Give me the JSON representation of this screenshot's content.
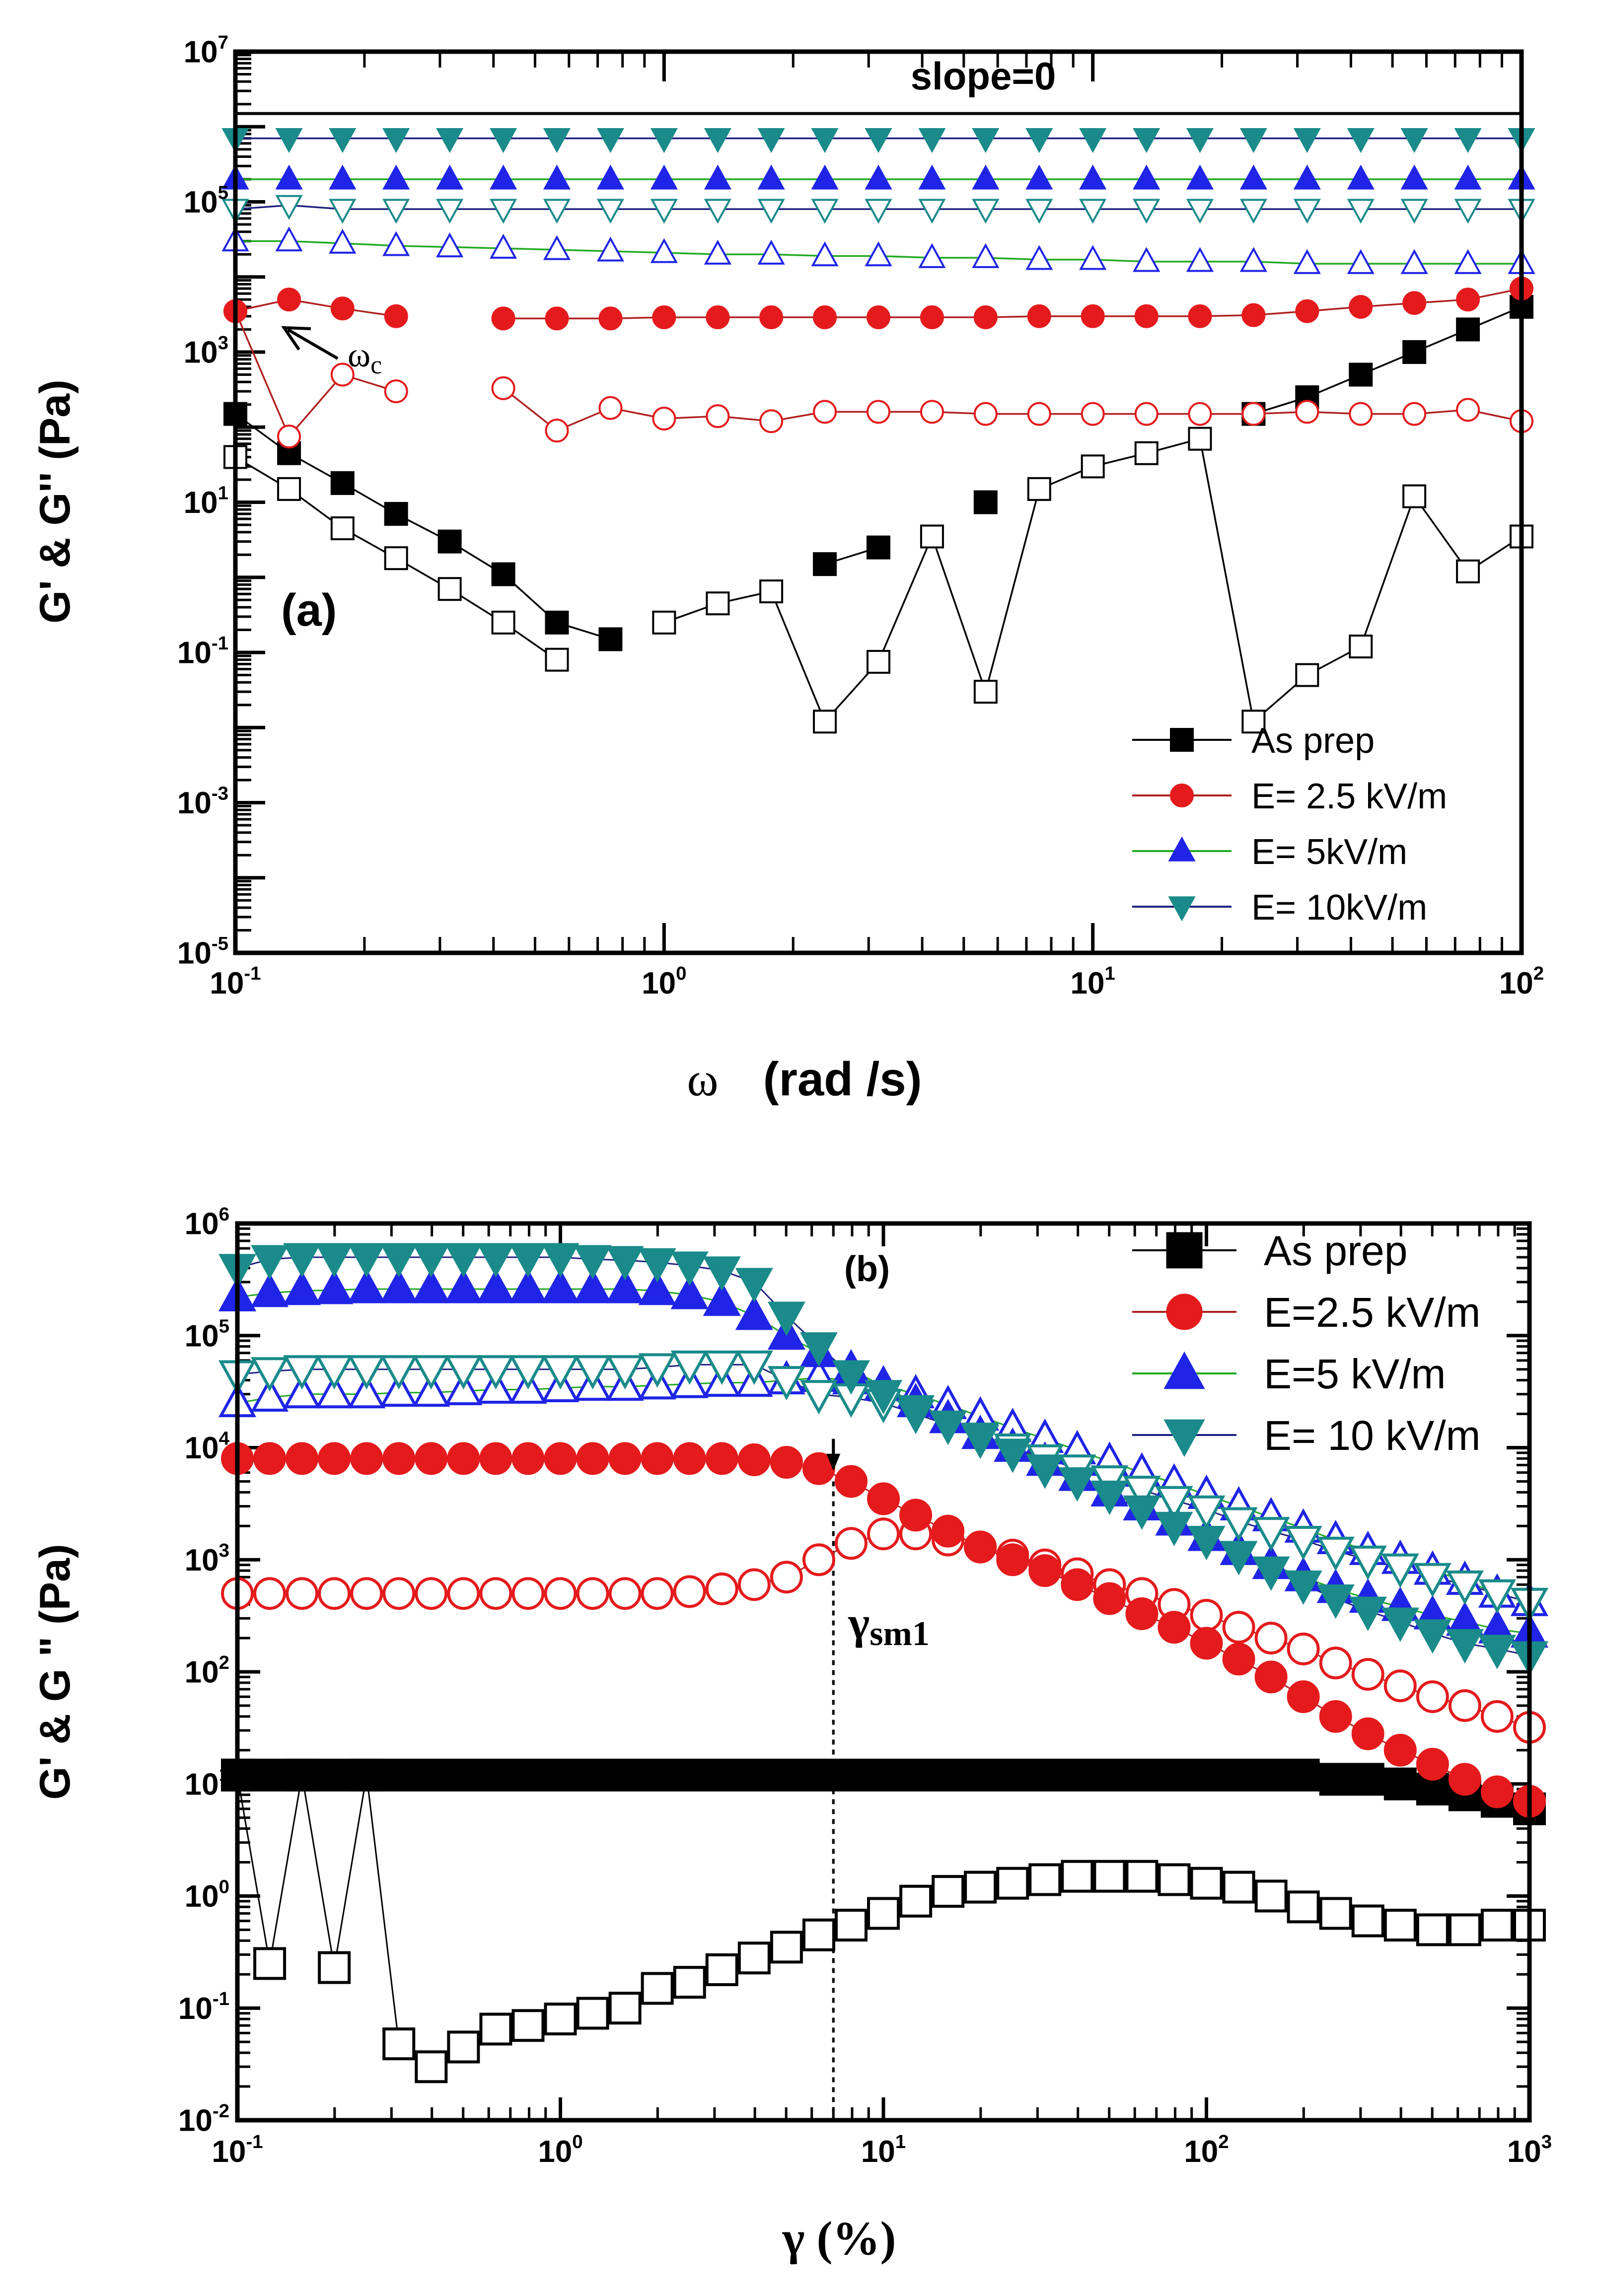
{
  "chart_data": [
    {
      "type": "scatter",
      "panel_label": "(a)",
      "xscale": "log",
      "yscale": "log",
      "xlim": [
        0.1,
        100
      ],
      "ylim": [
        1e-05,
        10000000
      ],
      "xlabel_symbol": "ω",
      "xlabel_units": "(rad /s)",
      "ylabel": "G' & G'' (Pa)",
      "x_ticks": [
        {
          "value": 0.1,
          "base": "10",
          "exp": "-1"
        },
        {
          "value": 1,
          "base": "10",
          "exp": "0"
        },
        {
          "value": 10,
          "base": "10",
          "exp": "1"
        },
        {
          "value": 100,
          "base": "10",
          "exp": "2"
        }
      ],
      "y_ticks": [
        {
          "value": 1e-05,
          "base": "10",
          "exp": "-5"
        },
        {
          "value": 0.001,
          "base": "10",
          "exp": "-3"
        },
        {
          "value": 0.1,
          "base": "10",
          "exp": "-1"
        },
        {
          "value": 10,
          "base": "10",
          "exp": "1"
        },
        {
          "value": 1000,
          "base": "10",
          "exp": "3"
        },
        {
          "value": 100000,
          "base": "10",
          "exp": "5"
        },
        {
          "value": 10000000,
          "base": "10",
          "exp": "7"
        }
      ],
      "annotations": {
        "slope_text": "slope=0",
        "slope_line_value": 1500000,
        "omega_c_symbol": "ω",
        "omega_c_sub": "c"
      },
      "legend_position": "bottom-right",
      "x": [
        0.1,
        0.1334,
        0.1778,
        0.2371,
        0.3162,
        0.4217,
        0.5623,
        0.7499,
        1,
        1.334,
        1.778,
        2.371,
        3.162,
        4.217,
        5.623,
        7.499,
        10,
        13.34,
        17.78,
        23.71,
        31.62,
        42.17,
        56.23,
        74.99,
        100
      ],
      "series": [
        {
          "name": "As prep",
          "color": "#000000",
          "marker": "square",
          "filled": [
            150,
            45,
            18,
            7,
            3,
            1.1,
            0.25,
            0.15,
            null,
            null,
            null,
            1.5,
            2.5,
            null,
            10,
            null,
            null,
            null,
            null,
            150,
            250,
            500,
            1000,
            2000,
            4000
          ],
          "open": [
            40,
            15,
            4.5,
            1.8,
            0.7,
            0.25,
            0.08,
            null,
            0.25,
            0.45,
            0.65,
            0.012,
            0.075,
            3.5,
            0.03,
            15,
            30,
            45,
            70,
            0.012,
            0.05,
            0.12,
            12,
            1.2,
            3.5
          ]
        },
        {
          "name": "E= 2.5 kV/m",
          "color": "#e41a1c",
          "marker": "circle",
          "filled": [
            3500,
            5000,
            3800,
            3000,
            null,
            2800,
            2800,
            2800,
            2900,
            2900,
            2900,
            2900,
            2900,
            2900,
            2900,
            3000,
            3000,
            3000,
            3000,
            3100,
            3500,
            4000,
            4500,
            5000,
            7000
          ],
          "open": [
            3500,
            75,
            500,
            300,
            null,
            330,
            90,
            180,
            130,
            140,
            120,
            160,
            160,
            160,
            150,
            150,
            150,
            150,
            150,
            150,
            160,
            150,
            150,
            170,
            120
          ]
        },
        {
          "name": "E= 5kV/m",
          "color": "#1f24e6",
          "marker": "triangle-up",
          "filled": [
            200000,
            200000,
            200000,
            200000,
            200000,
            200000,
            200000,
            200000,
            200000,
            200000,
            200000,
            200000,
            200000,
            200000,
            200000,
            200000,
            200000,
            200000,
            200000,
            200000,
            200000,
            200000,
            200000,
            200000,
            200000
          ],
          "open": [
            30000,
            30000,
            28000,
            26000,
            25000,
            24000,
            23000,
            22000,
            21000,
            20000,
            20000,
            19000,
            19000,
            18000,
            18000,
            17000,
            17000,
            16000,
            16000,
            16000,
            15000,
            15000,
            15000,
            15000,
            15000
          ]
        },
        {
          "name": "E= 10kV/m",
          "color": "#1a8a8a",
          "marker": "triangle-down",
          "filled": [
            700000,
            700000,
            700000,
            700000,
            700000,
            700000,
            700000,
            700000,
            700000,
            700000,
            700000,
            700000,
            700000,
            700000,
            700000,
            700000,
            700000,
            700000,
            700000,
            700000,
            700000,
            700000,
            700000,
            700000,
            700000
          ],
          "open": [
            80000,
            90000,
            80000,
            80000,
            80000,
            80000,
            80000,
            80000,
            80000,
            80000,
            80000,
            80000,
            80000,
            80000,
            80000,
            80000,
            80000,
            80000,
            80000,
            80000,
            80000,
            80000,
            80000,
            80000,
            80000
          ]
        }
      ]
    },
    {
      "type": "scatter",
      "panel_label": "(b)",
      "xscale": "log",
      "yscale": "log",
      "xlim": [
        0.1,
        1000
      ],
      "ylim": [
        0.01,
        1000000
      ],
      "xlabel": "γ (%)",
      "ylabel": "G' & G \" (Pa)",
      "x_ticks": [
        {
          "value": 0.1,
          "base": "10",
          "exp": "-1"
        },
        {
          "value": 1,
          "base": "10",
          "exp": "0"
        },
        {
          "value": 10,
          "base": "10",
          "exp": "1"
        },
        {
          "value": 100,
          "base": "10",
          "exp": "2"
        },
        {
          "value": 1000,
          "base": "10",
          "exp": "3"
        }
      ],
      "y_ticks": [
        {
          "value": 0.01,
          "base": "10",
          "exp": "-2"
        },
        {
          "value": 0.1,
          "base": "10",
          "exp": "-1"
        },
        {
          "value": 1,
          "base": "10",
          "exp": "0"
        },
        {
          "value": 10,
          "base": "10",
          "exp": "1"
        },
        {
          "value": 100,
          "base": "10",
          "exp": "2"
        },
        {
          "value": 1000,
          "base": "10",
          "exp": "3"
        },
        {
          "value": 10000,
          "base": "10",
          "exp": "4"
        },
        {
          "value": 100000,
          "base": "10",
          "exp": "5"
        },
        {
          "value": 1000000,
          "base": "10",
          "exp": "6"
        }
      ],
      "annotations": {
        "gamma_symbol": "γ",
        "gamma_sub": "sm1",
        "gamma_sm1_value": 7
      },
      "legend_position": "top-right",
      "x": [
        0.1,
        0.1259,
        0.1585,
        0.1995,
        0.2512,
        0.3162,
        0.3981,
        0.5012,
        0.631,
        0.7943,
        1,
        1.259,
        1.585,
        1.995,
        2.512,
        3.162,
        3.981,
        5.012,
        6.31,
        7.943,
        10,
        12.59,
        15.85,
        19.95,
        25.12,
        31.62,
        39.81,
        50.12,
        63.1,
        79.43,
        100,
        125.9,
        158.5,
        199.5,
        251.2,
        316.2,
        398.1,
        501.2,
        631,
        794.3,
        1000
      ],
      "series": [
        {
          "name": "As prep",
          "color": "#000000",
          "marker": "square",
          "filled": [
            12,
            12,
            12,
            12,
            12,
            12,
            12,
            12,
            12,
            12,
            12,
            12,
            12,
            12,
            12,
            12,
            12,
            12,
            12,
            12,
            12,
            12,
            12,
            12,
            12,
            12,
            12,
            12,
            12,
            12,
            12,
            12,
            12,
            12,
            11,
            11,
            10,
            9,
            8,
            7,
            6
          ],
          "open": [
            12,
            0.25,
            12,
            0.23,
            12,
            0.048,
            0.03,
            0.045,
            0.065,
            0.07,
            0.08,
            0.09,
            0.1,
            0.15,
            0.17,
            0.22,
            0.28,
            0.35,
            0.45,
            0.55,
            0.7,
            0.9,
            1.1,
            1.2,
            1.3,
            1.4,
            1.5,
            1.5,
            1.5,
            1.4,
            1.3,
            1.2,
            1,
            0.8,
            0.7,
            0.6,
            0.55,
            0.5,
            0.5,
            0.55,
            0.55
          ]
        },
        {
          "name": "E=2.5 kV/m",
          "color": "#e41a1c",
          "marker": "circle",
          "filled": [
            8000,
            8000,
            8000,
            8000,
            8000,
            8000,
            8000,
            8000,
            8000,
            8000,
            8000,
            8000,
            8000,
            8000,
            8000,
            8000,
            7800,
            7400,
            6500,
            5000,
            3500,
            2500,
            1800,
            1300,
            1000,
            800,
            600,
            450,
            330,
            250,
            180,
            130,
            90,
            60,
            40,
            28,
            20,
            15,
            11,
            8.5,
            7
          ],
          "open": [
            500,
            500,
            500,
            500,
            500,
            500,
            500,
            500,
            500,
            500,
            500,
            500,
            500,
            500,
            520,
            550,
            600,
            700,
            1000,
            1400,
            1700,
            1700,
            1500,
            1300,
            1100,
            900,
            750,
            600,
            500,
            400,
            320,
            250,
            200,
            160,
            120,
            95,
            75,
            60,
            50,
            40,
            32
          ]
        },
        {
          "name": "E=5 kV/m",
          "color": "#1f24e6",
          "marker": "triangle-up",
          "filled": [
            220000,
            240000,
            250000,
            255000,
            260000,
            260000,
            260000,
            260000,
            260000,
            260000,
            260000,
            260000,
            260000,
            250000,
            230000,
            200000,
            150000,
            100000,
            70000,
            50000,
            35000,
            25000,
            18000,
            13000,
            10000,
            7500,
            5500,
            4000,
            3000,
            2200,
            1600,
            1200,
            900,
            700,
            550,
            450,
            380,
            320,
            280,
            240,
            220
          ],
          "open": [
            25000,
            28000,
            30000,
            30000,
            30000,
            31000,
            31000,
            32000,
            33000,
            33000,
            34000,
            35000,
            35000,
            36000,
            37000,
            38000,
            38000,
            40000,
            42000,
            40000,
            36000,
            30000,
            24000,
            19000,
            15000,
            12000,
            9500,
            7500,
            6000,
            4800,
            3800,
            3000,
            2400,
            1900,
            1500,
            1200,
            1000,
            800,
            650,
            500,
            420
          ]
        },
        {
          "name": "E= 10 kV/m",
          "color": "#1a8a8a",
          "marker": "triangle-down",
          "filled": [
            400000,
            480000,
            500000,
            500000,
            500000,
            500000,
            500000,
            500000,
            500000,
            500000,
            500000,
            480000,
            470000,
            450000,
            420000,
            380000,
            300000,
            150000,
            80000,
            45000,
            30000,
            22000,
            16000,
            12000,
            9000,
            6500,
            5000,
            3800,
            2800,
            2000,
            1500,
            1100,
            800,
            600,
            450,
            350,
            280,
            220,
            180,
            160,
            140
          ],
          "open": [
            45000,
            48000,
            50000,
            50000,
            50000,
            50000,
            50000,
            50000,
            50000,
            50000,
            50000,
            50000,
            50000,
            52000,
            55000,
            55000,
            55000,
            40000,
            30000,
            28000,
            25000,
            20000,
            16000,
            12500,
            10000,
            8000,
            6500,
            5200,
            4200,
            3400,
            2800,
            2200,
            1800,
            1500,
            1200,
            1000,
            850,
            700,
            600,
            500,
            420
          ]
        }
      ]
    }
  ]
}
